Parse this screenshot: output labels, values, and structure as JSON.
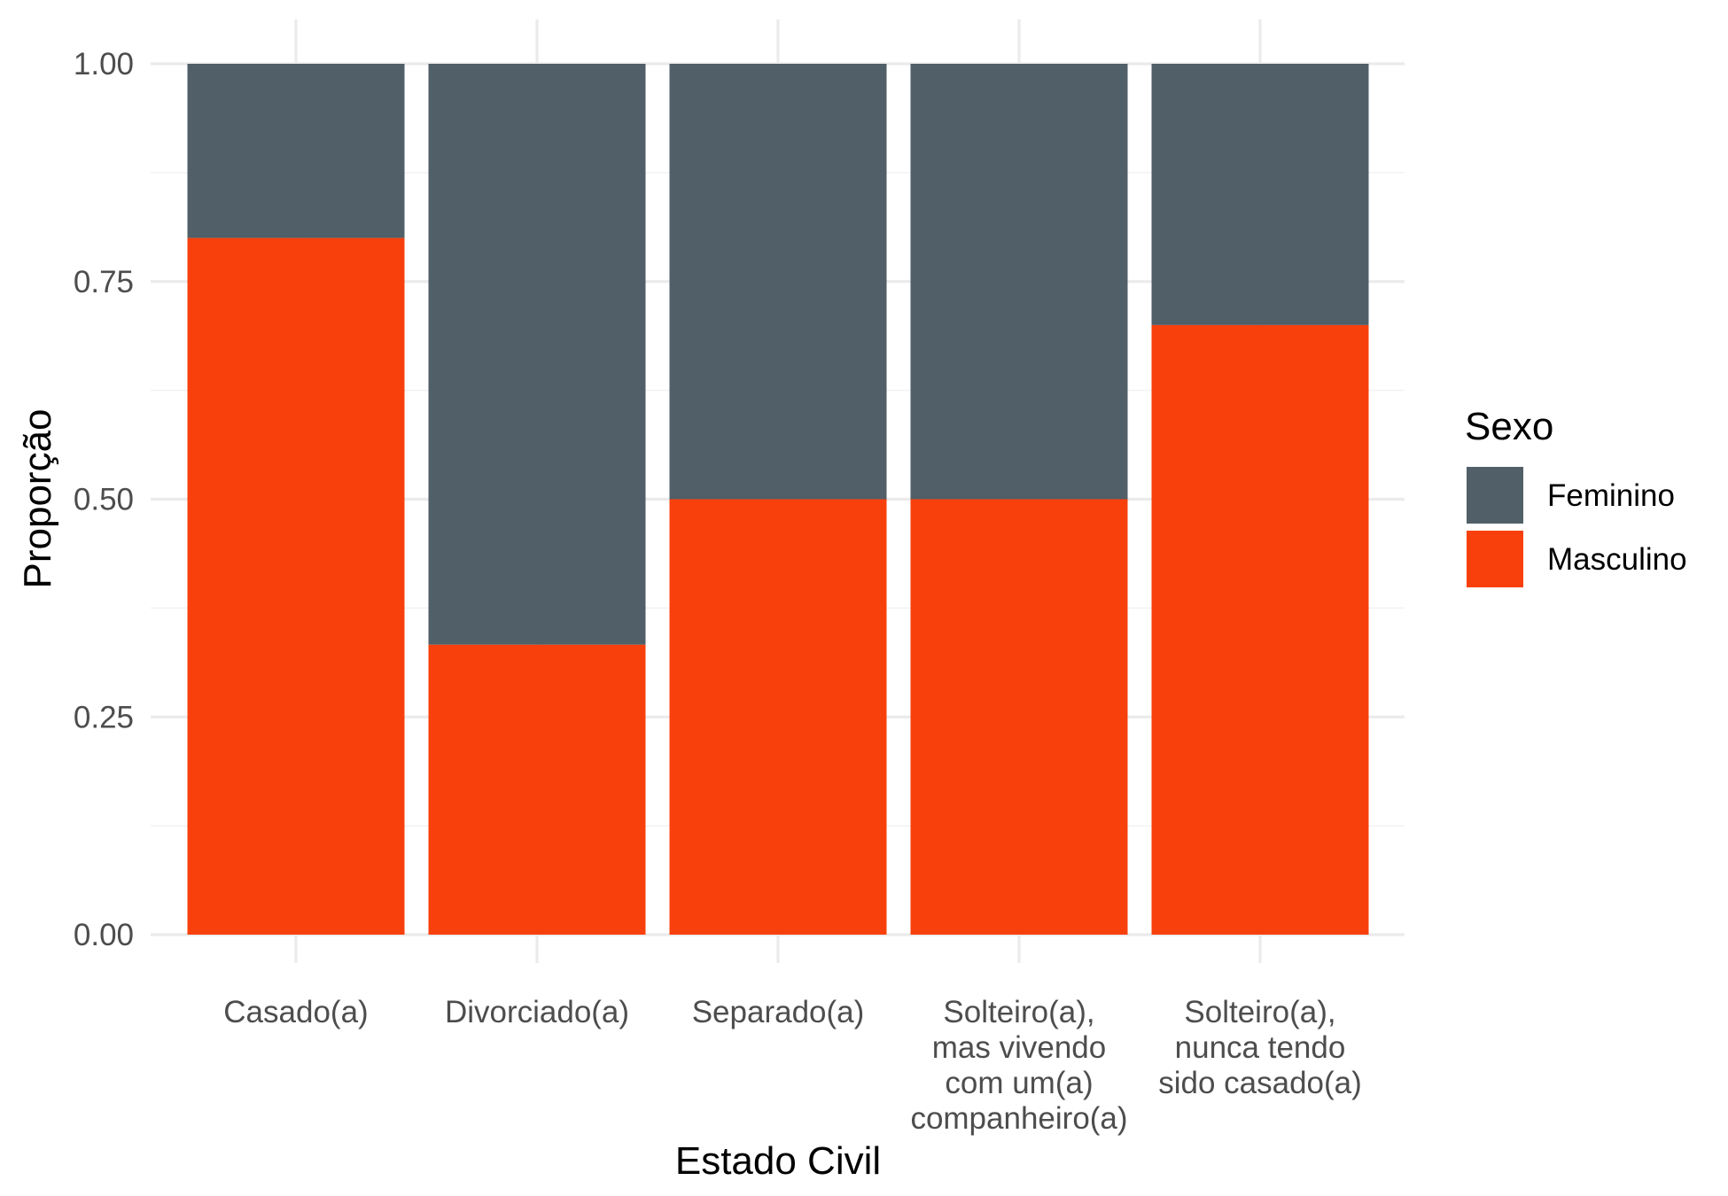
{
  "chart_data": {
    "type": "bar",
    "stacked": true,
    "categories": [
      [
        "Casado(a)"
      ],
      [
        "Divorciado(a)"
      ],
      [
        "Separado(a)"
      ],
      [
        "Solteiro(a),",
        "mas vivendo",
        "com um(a)",
        "companheiro(a)"
      ],
      [
        "Solteiro(a),",
        "nunca tendo",
        "sido casado(a)"
      ]
    ],
    "series": [
      {
        "name": "Masculino",
        "color": "#F8400D",
        "values": [
          0.8,
          0.333,
          0.5,
          0.5,
          0.7
        ]
      },
      {
        "name": "Feminino",
        "color": "#505F68",
        "values": [
          0.2,
          0.667,
          0.5,
          0.5,
          0.3
        ]
      }
    ],
    "xlabel": "Estado Civil",
    "ylabel": "Proporção",
    "ylim": [
      0,
      1
    ],
    "yticks": [
      "0.00",
      "0.25",
      "0.50",
      "0.75",
      "1.00"
    ],
    "grid": true,
    "legend": {
      "title": "Sexo",
      "placement": "right",
      "entries": [
        {
          "label": "Feminino",
          "color": "#505F68"
        },
        {
          "label": "Masculino",
          "color": "#F8400D"
        }
      ]
    }
  }
}
